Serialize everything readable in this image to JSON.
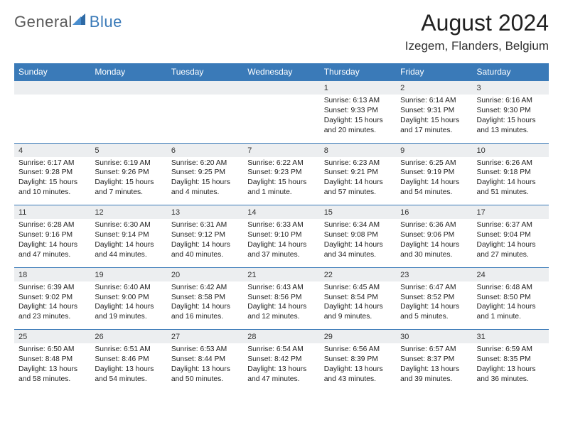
{
  "logo": {
    "part1": "General",
    "part2": "Blue"
  },
  "title": "August 2024",
  "location": "Izegem, Flanders, Belgium",
  "colors": {
    "header_bg": "#3a7ab8",
    "header_text": "#ffffff",
    "daynum_bg": "#eceef0",
    "row_border": "#3a7ab8",
    "logo_gray": "#5a5a5a",
    "logo_blue": "#3a7ab8"
  },
  "daysOfWeek": [
    "Sunday",
    "Monday",
    "Tuesday",
    "Wednesday",
    "Thursday",
    "Friday",
    "Saturday"
  ],
  "weeks": [
    [
      {
        "n": "",
        "sr": "",
        "ss": "",
        "dl": ""
      },
      {
        "n": "",
        "sr": "",
        "ss": "",
        "dl": ""
      },
      {
        "n": "",
        "sr": "",
        "ss": "",
        "dl": ""
      },
      {
        "n": "",
        "sr": "",
        "ss": "",
        "dl": ""
      },
      {
        "n": "1",
        "sr": "Sunrise: 6:13 AM",
        "ss": "Sunset: 9:33 PM",
        "dl": "Daylight: 15 hours and 20 minutes."
      },
      {
        "n": "2",
        "sr": "Sunrise: 6:14 AM",
        "ss": "Sunset: 9:31 PM",
        "dl": "Daylight: 15 hours and 17 minutes."
      },
      {
        "n": "3",
        "sr": "Sunrise: 6:16 AM",
        "ss": "Sunset: 9:30 PM",
        "dl": "Daylight: 15 hours and 13 minutes."
      }
    ],
    [
      {
        "n": "4",
        "sr": "Sunrise: 6:17 AM",
        "ss": "Sunset: 9:28 PM",
        "dl": "Daylight: 15 hours and 10 minutes."
      },
      {
        "n": "5",
        "sr": "Sunrise: 6:19 AM",
        "ss": "Sunset: 9:26 PM",
        "dl": "Daylight: 15 hours and 7 minutes."
      },
      {
        "n": "6",
        "sr": "Sunrise: 6:20 AM",
        "ss": "Sunset: 9:25 PM",
        "dl": "Daylight: 15 hours and 4 minutes."
      },
      {
        "n": "7",
        "sr": "Sunrise: 6:22 AM",
        "ss": "Sunset: 9:23 PM",
        "dl": "Daylight: 15 hours and 1 minute."
      },
      {
        "n": "8",
        "sr": "Sunrise: 6:23 AM",
        "ss": "Sunset: 9:21 PM",
        "dl": "Daylight: 14 hours and 57 minutes."
      },
      {
        "n": "9",
        "sr": "Sunrise: 6:25 AM",
        "ss": "Sunset: 9:19 PM",
        "dl": "Daylight: 14 hours and 54 minutes."
      },
      {
        "n": "10",
        "sr": "Sunrise: 6:26 AM",
        "ss": "Sunset: 9:18 PM",
        "dl": "Daylight: 14 hours and 51 minutes."
      }
    ],
    [
      {
        "n": "11",
        "sr": "Sunrise: 6:28 AM",
        "ss": "Sunset: 9:16 PM",
        "dl": "Daylight: 14 hours and 47 minutes."
      },
      {
        "n": "12",
        "sr": "Sunrise: 6:30 AM",
        "ss": "Sunset: 9:14 PM",
        "dl": "Daylight: 14 hours and 44 minutes."
      },
      {
        "n": "13",
        "sr": "Sunrise: 6:31 AM",
        "ss": "Sunset: 9:12 PM",
        "dl": "Daylight: 14 hours and 40 minutes."
      },
      {
        "n": "14",
        "sr": "Sunrise: 6:33 AM",
        "ss": "Sunset: 9:10 PM",
        "dl": "Daylight: 14 hours and 37 minutes."
      },
      {
        "n": "15",
        "sr": "Sunrise: 6:34 AM",
        "ss": "Sunset: 9:08 PM",
        "dl": "Daylight: 14 hours and 34 minutes."
      },
      {
        "n": "16",
        "sr": "Sunrise: 6:36 AM",
        "ss": "Sunset: 9:06 PM",
        "dl": "Daylight: 14 hours and 30 minutes."
      },
      {
        "n": "17",
        "sr": "Sunrise: 6:37 AM",
        "ss": "Sunset: 9:04 PM",
        "dl": "Daylight: 14 hours and 27 minutes."
      }
    ],
    [
      {
        "n": "18",
        "sr": "Sunrise: 6:39 AM",
        "ss": "Sunset: 9:02 PM",
        "dl": "Daylight: 14 hours and 23 minutes."
      },
      {
        "n": "19",
        "sr": "Sunrise: 6:40 AM",
        "ss": "Sunset: 9:00 PM",
        "dl": "Daylight: 14 hours and 19 minutes."
      },
      {
        "n": "20",
        "sr": "Sunrise: 6:42 AM",
        "ss": "Sunset: 8:58 PM",
        "dl": "Daylight: 14 hours and 16 minutes."
      },
      {
        "n": "21",
        "sr": "Sunrise: 6:43 AM",
        "ss": "Sunset: 8:56 PM",
        "dl": "Daylight: 14 hours and 12 minutes."
      },
      {
        "n": "22",
        "sr": "Sunrise: 6:45 AM",
        "ss": "Sunset: 8:54 PM",
        "dl": "Daylight: 14 hours and 9 minutes."
      },
      {
        "n": "23",
        "sr": "Sunrise: 6:47 AM",
        "ss": "Sunset: 8:52 PM",
        "dl": "Daylight: 14 hours and 5 minutes."
      },
      {
        "n": "24",
        "sr": "Sunrise: 6:48 AM",
        "ss": "Sunset: 8:50 PM",
        "dl": "Daylight: 14 hours and 1 minute."
      }
    ],
    [
      {
        "n": "25",
        "sr": "Sunrise: 6:50 AM",
        "ss": "Sunset: 8:48 PM",
        "dl": "Daylight: 13 hours and 58 minutes."
      },
      {
        "n": "26",
        "sr": "Sunrise: 6:51 AM",
        "ss": "Sunset: 8:46 PM",
        "dl": "Daylight: 13 hours and 54 minutes."
      },
      {
        "n": "27",
        "sr": "Sunrise: 6:53 AM",
        "ss": "Sunset: 8:44 PM",
        "dl": "Daylight: 13 hours and 50 minutes."
      },
      {
        "n": "28",
        "sr": "Sunrise: 6:54 AM",
        "ss": "Sunset: 8:42 PM",
        "dl": "Daylight: 13 hours and 47 minutes."
      },
      {
        "n": "29",
        "sr": "Sunrise: 6:56 AM",
        "ss": "Sunset: 8:39 PM",
        "dl": "Daylight: 13 hours and 43 minutes."
      },
      {
        "n": "30",
        "sr": "Sunrise: 6:57 AM",
        "ss": "Sunset: 8:37 PM",
        "dl": "Daylight: 13 hours and 39 minutes."
      },
      {
        "n": "31",
        "sr": "Sunrise: 6:59 AM",
        "ss": "Sunset: 8:35 PM",
        "dl": "Daylight: 13 hours and 36 minutes."
      }
    ]
  ]
}
